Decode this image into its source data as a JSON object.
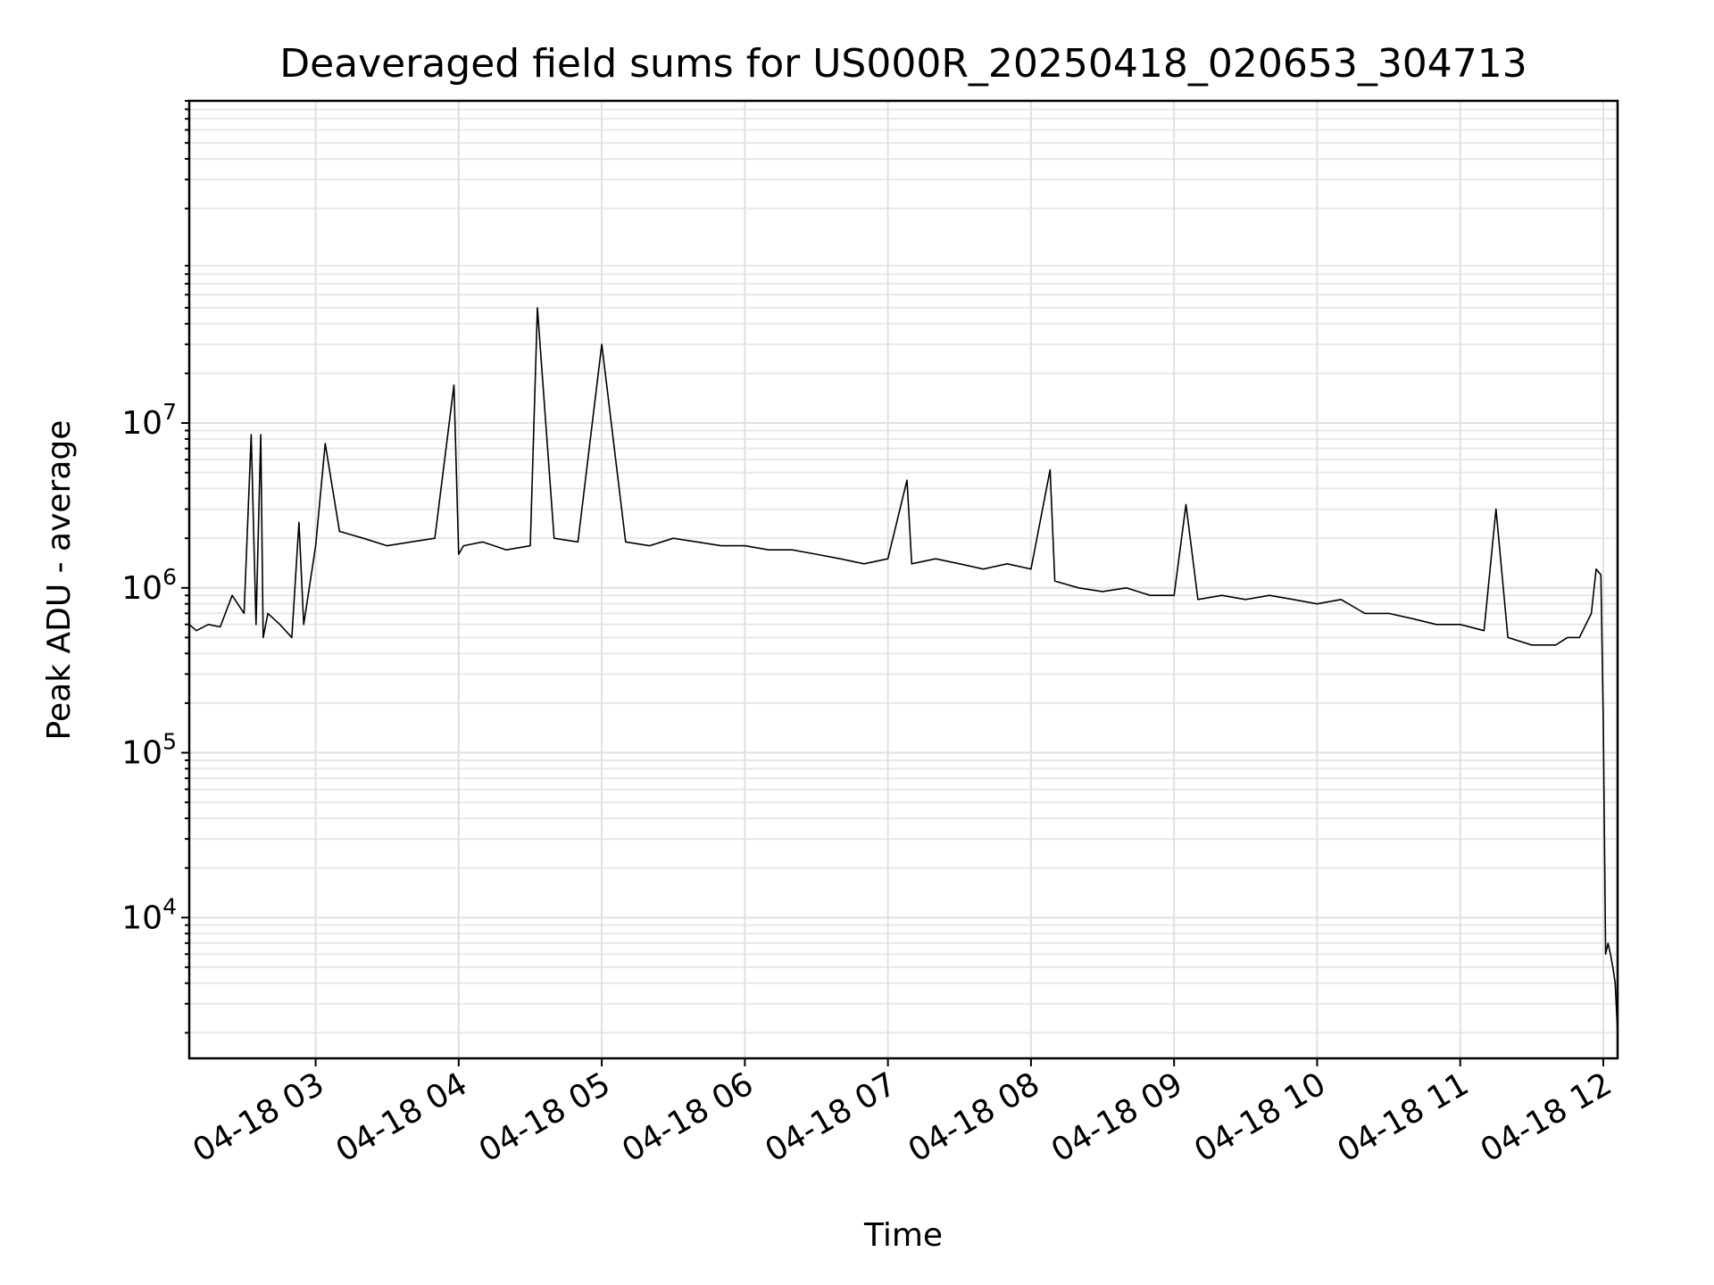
{
  "chart_data": {
    "type": "line",
    "title": "Deaveraged field sums for US000R_20250418_020653_304713",
    "xlabel": "Time",
    "ylabel": "Peak ADU - average",
    "y_scale": "log",
    "ylim": [
      1400,
      900000000
    ],
    "xlim": [
      "2025-04-18 02:07",
      "2025-04-18 12:06"
    ],
    "grid": true,
    "grid_minor_y": true,
    "x_tick_labels": [
      "04-18 03",
      "04-18 04",
      "04-18 05",
      "04-18 06",
      "04-18 07",
      "04-18 08",
      "04-18 09",
      "04-18 10",
      "04-18 11",
      "04-18 12"
    ],
    "x_ticks": [
      "2025-04-18 03:00",
      "2025-04-18 04:00",
      "2025-04-18 05:00",
      "2025-04-18 06:00",
      "2025-04-18 07:00",
      "2025-04-18 08:00",
      "2025-04-18 09:00",
      "2025-04-18 10:00",
      "2025-04-18 11:00",
      "2025-04-18 12:00"
    ],
    "y_ticks": [
      {
        "value": 10000,
        "base": "10",
        "exp": "4"
      },
      {
        "value": 100000,
        "base": "10",
        "exp": "5"
      },
      {
        "value": 1000000,
        "base": "10",
        "exp": "6"
      },
      {
        "value": 10000000,
        "base": "10",
        "exp": "7"
      }
    ],
    "line_color": "#000000",
    "series": [
      {
        "x": [
          "2025-04-18 02:07",
          "2025-04-18 02:10",
          "2025-04-18 02:15",
          "2025-04-18 02:20",
          "2025-04-18 02:25",
          "2025-04-18 02:30",
          "2025-04-18 02:33",
          "2025-04-18 02:35",
          "2025-04-18 02:37",
          "2025-04-18 02:38",
          "2025-04-18 02:40",
          "2025-04-18 02:45",
          "2025-04-18 02:50",
          "2025-04-18 02:53",
          "2025-04-18 02:55",
          "2025-04-18 03:00",
          "2025-04-18 03:04",
          "2025-04-18 03:10",
          "2025-04-18 03:20",
          "2025-04-18 03:30",
          "2025-04-18 03:40",
          "2025-04-18 03:50",
          "2025-04-18 03:58",
          "2025-04-18 04:00",
          "2025-04-18 04:02",
          "2025-04-18 04:10",
          "2025-04-18 04:20",
          "2025-04-18 04:30",
          "2025-04-18 04:33",
          "2025-04-18 04:40",
          "2025-04-18 04:50",
          "2025-04-18 05:00",
          "2025-04-18 05:10",
          "2025-04-18 05:20",
          "2025-04-18 05:30",
          "2025-04-18 05:40",
          "2025-04-18 05:50",
          "2025-04-18 06:00",
          "2025-04-18 06:10",
          "2025-04-18 06:20",
          "2025-04-18 06:30",
          "2025-04-18 06:40",
          "2025-04-18 06:50",
          "2025-04-18 07:00",
          "2025-04-18 07:08",
          "2025-04-18 07:10",
          "2025-04-18 07:20",
          "2025-04-18 07:30",
          "2025-04-18 07:40",
          "2025-04-18 07:50",
          "2025-04-18 08:00",
          "2025-04-18 08:08",
          "2025-04-18 08:10",
          "2025-04-18 08:20",
          "2025-04-18 08:30",
          "2025-04-18 08:40",
          "2025-04-18 08:50",
          "2025-04-18 09:00",
          "2025-04-18 09:05",
          "2025-04-18 09:10",
          "2025-04-18 09:20",
          "2025-04-18 09:30",
          "2025-04-18 09:40",
          "2025-04-18 09:50",
          "2025-04-18 10:00",
          "2025-04-18 10:10",
          "2025-04-18 10:20",
          "2025-04-18 10:30",
          "2025-04-18 10:40",
          "2025-04-18 10:50",
          "2025-04-18 11:00",
          "2025-04-18 11:10",
          "2025-04-18 11:15",
          "2025-04-18 11:20",
          "2025-04-18 11:30",
          "2025-04-18 11:40",
          "2025-04-18 11:45",
          "2025-04-18 11:50",
          "2025-04-18 11:55",
          "2025-04-18 11:57",
          "2025-04-18 11:59",
          "2025-04-18 12:00",
          "2025-04-18 12:01",
          "2025-04-18 12:02",
          "2025-04-18 12:03",
          "2025-04-18 12:04",
          "2025-04-18 12:05",
          "2025-04-18 12:06"
        ],
        "y": [
          600000,
          550000,
          600000,
          580000,
          900000,
          700000,
          8500000,
          600000,
          8500000,
          500000,
          700000,
          600000,
          500000,
          2500000,
          600000,
          1800000,
          7500000,
          2200000,
          2000000,
          1800000,
          1900000,
          2000000,
          17000000,
          1600000,
          1800000,
          1900000,
          1700000,
          1800000,
          50000000,
          2000000,
          1900000,
          30000000,
          1900000,
          1800000,
          2000000,
          1900000,
          1800000,
          1800000,
          1700000,
          1700000,
          1600000,
          1500000,
          1400000,
          1500000,
          4500000,
          1400000,
          1500000,
          1400000,
          1300000,
          1400000,
          1300000,
          5200000,
          1100000,
          1000000,
          950000,
          1000000,
          900000,
          900000,
          3200000,
          850000,
          900000,
          850000,
          900000,
          850000,
          800000,
          850000,
          700000,
          700000,
          650000,
          600000,
          600000,
          550000,
          3000000,
          500000,
          450000,
          450000,
          500000,
          500000,
          700000,
          1300000,
          1200000,
          150000,
          6000,
          7000,
          6000,
          5000,
          4000,
          2000
        ]
      }
    ]
  }
}
